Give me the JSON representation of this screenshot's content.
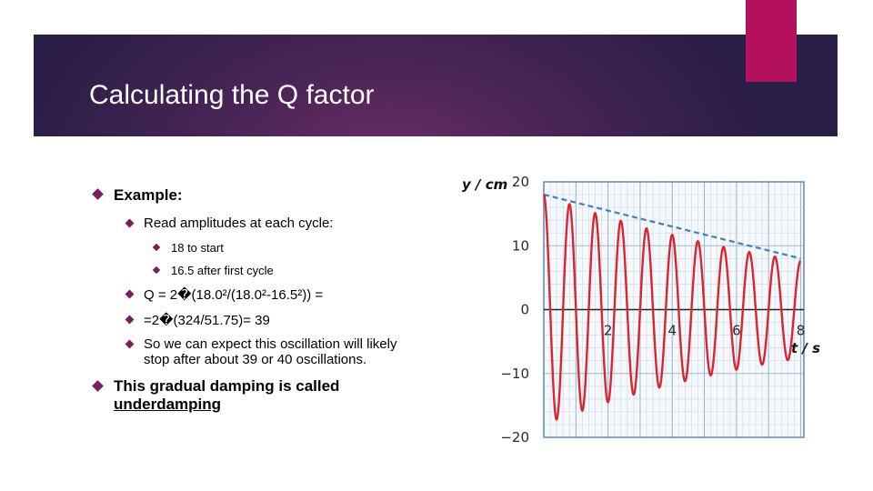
{
  "slide": {
    "title": "Calculating the Q factor",
    "colors": {
      "banner_dark": "#2a1d47",
      "banner_mid": "#6e2c66",
      "accent": "#b3115e",
      "bullet": "#7a1f5c"
    }
  },
  "bullets": [
    {
      "text": "Example:",
      "level": 1
    },
    {
      "text": "Read amplitudes at each cycle:",
      "level": 2
    },
    {
      "text": "18 to start",
      "level": 3
    },
    {
      "text": "16.5 after first cycle",
      "level": 3
    },
    {
      "text": "Q = 2�(18.0²/(18.0²-16.5²)) =",
      "level": 2
    },
    {
      "text": "=2�(324/51.75)= 39",
      "level": 2
    },
    {
      "text": "So we can expect this oscillation will likely",
      "text2": "stop after about 39 or 40 oscillations.",
      "level": 2
    },
    {
      "text": "This gradual damping is called",
      "text2": "underdamping",
      "level": 1
    }
  ],
  "chart_data": {
    "type": "line",
    "title": "",
    "xlabel": "t / s",
    "ylabel": "y / cm",
    "xlim": [
      0,
      8.1
    ],
    "ylim": [
      -20,
      20
    ],
    "xticks": [
      2,
      4,
      6,
      8
    ],
    "yticks": [
      20,
      10,
      0,
      -10,
      -20
    ],
    "ytick_labels": [
      "20",
      "10",
      "0",
      "−10",
      "−20"
    ],
    "grid": true,
    "series": [
      {
        "style": "solid",
        "color": "#d9262e",
        "description_values": "damped sinusoid y = A(t) cos(2π f t), period ≈ 0.8 s",
        "x": [
          0.0,
          0.2,
          0.4,
          0.6,
          0.8,
          1.0,
          1.2,
          1.4,
          1.6,
          1.8,
          2.0,
          2.2,
          2.4,
          2.6,
          2.8,
          3.0,
          3.2,
          3.4,
          3.6,
          3.8,
          4.0,
          4.2,
          4.4,
          4.6,
          4.8,
          5.0,
          5.2,
          5.4,
          5.6,
          5.8,
          6.0,
          6.2,
          6.4,
          6.6,
          6.8,
          7.0,
          7.2,
          7.4,
          7.6,
          7.8,
          8.0
        ],
        "y": [
          18.0,
          0,
          -17.2,
          0,
          16.5,
          0,
          -15.8,
          0,
          15.1,
          0,
          14.5,
          0,
          -13.9,
          0,
          13.3,
          0,
          -12.7,
          0,
          12.2,
          0,
          11.7,
          0,
          -11.2,
          0,
          10.7,
          0,
          -10.3,
          0,
          9.8,
          0,
          9.4,
          0,
          -9.0,
          0,
          8.6,
          0,
          -8.3,
          0,
          7.9,
          0,
          7.6
        ]
      },
      {
        "style": "dashed",
        "color": "#3d7fc4",
        "x": [
          0,
          8
        ],
        "y": [
          18.0,
          8.0
        ]
      }
    ]
  }
}
